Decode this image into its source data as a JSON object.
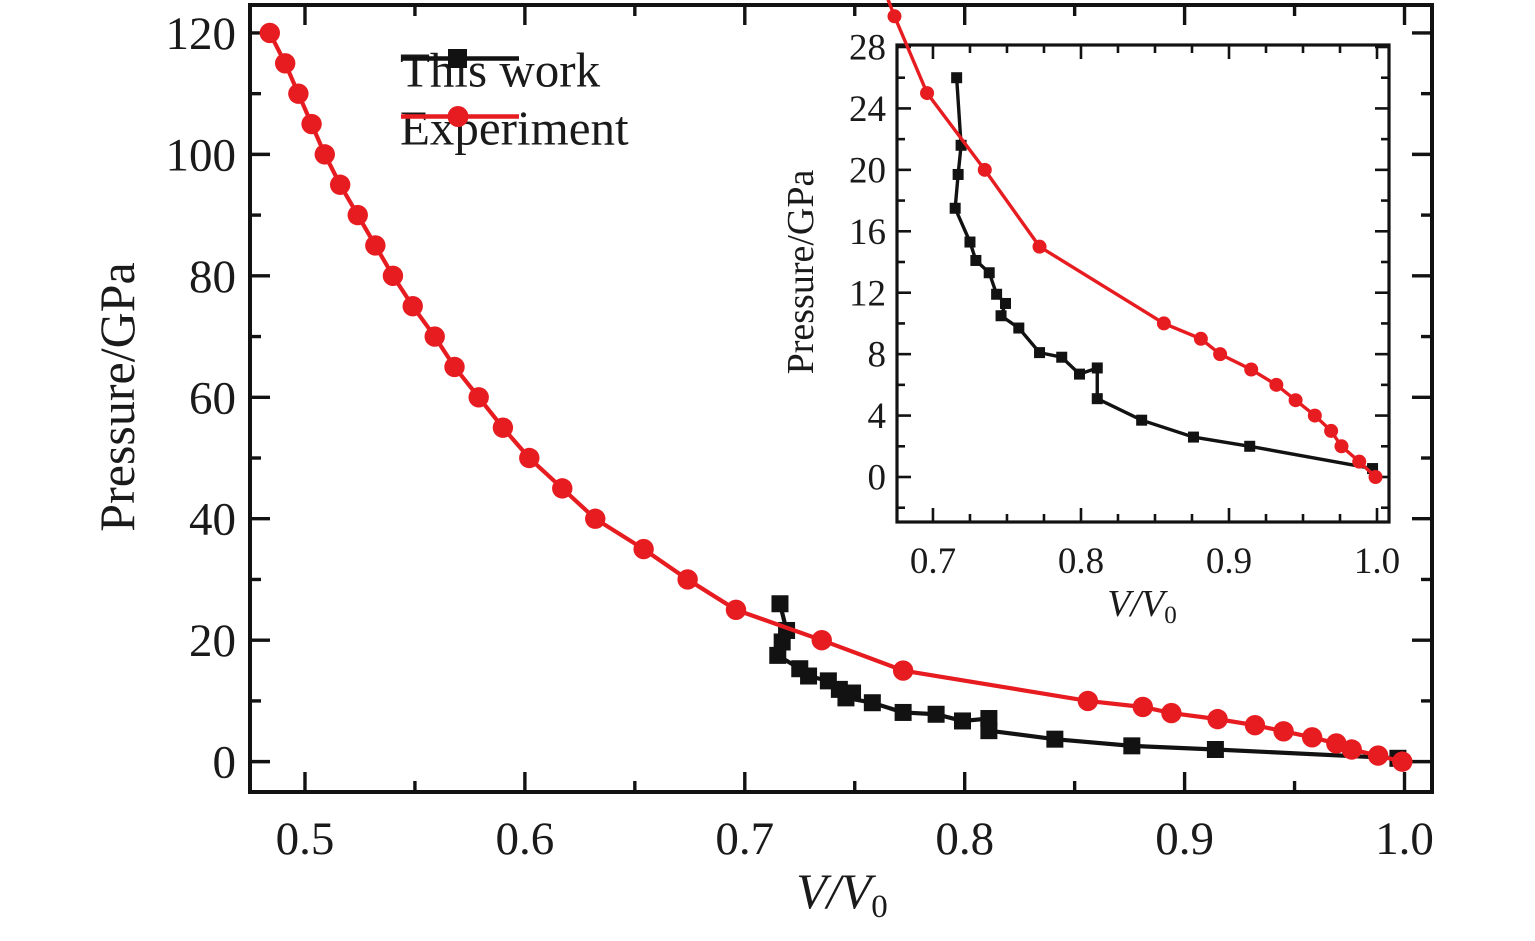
{
  "figure": {
    "background": "#ffffff",
    "text_color": "#1a1a1a"
  },
  "chart_data": {
    "type": "line",
    "title": "",
    "legend_position": "top-left-of-main-plot",
    "grid": false,
    "series": [
      {
        "name": "This work",
        "color": "#121212",
        "marker": "square",
        "points": [
          [
            0.716,
            26.0
          ],
          [
            0.719,
            21.6
          ],
          [
            0.717,
            19.7
          ],
          [
            0.715,
            17.5
          ],
          [
            0.725,
            15.3
          ],
          [
            0.729,
            14.1
          ],
          [
            0.738,
            13.3
          ],
          [
            0.743,
            11.9
          ],
          [
            0.749,
            11.3
          ],
          [
            0.746,
            10.5
          ],
          [
            0.758,
            9.7
          ],
          [
            0.772,
            8.1
          ],
          [
            0.787,
            7.8
          ],
          [
            0.799,
            6.7
          ],
          [
            0.811,
            7.1
          ],
          [
            0.811,
            5.1
          ],
          [
            0.841,
            3.7
          ],
          [
            0.876,
            2.6
          ],
          [
            0.914,
            2.0
          ],
          [
            0.997,
            0.55
          ]
        ]
      },
      {
        "name": "Experiment",
        "color": "#e71c21",
        "marker": "circle",
        "points": [
          [
            0.484,
            120
          ],
          [
            0.491,
            115
          ],
          [
            0.497,
            110
          ],
          [
            0.503,
            105
          ],
          [
            0.509,
            100
          ],
          [
            0.516,
            95
          ],
          [
            0.524,
            90
          ],
          [
            0.532,
            85
          ],
          [
            0.54,
            80
          ],
          [
            0.549,
            75
          ],
          [
            0.559,
            70
          ],
          [
            0.568,
            65
          ],
          [
            0.579,
            60
          ],
          [
            0.59,
            55
          ],
          [
            0.602,
            50
          ],
          [
            0.617,
            45
          ],
          [
            0.632,
            40
          ],
          [
            0.654,
            35
          ],
          [
            0.674,
            30
          ],
          [
            0.696,
            25
          ],
          [
            0.735,
            20
          ],
          [
            0.772,
            15
          ],
          [
            0.856,
            10
          ],
          [
            0.881,
            9
          ],
          [
            0.894,
            8
          ],
          [
            0.915,
            7
          ],
          [
            0.932,
            6
          ],
          [
            0.945,
            5
          ],
          [
            0.958,
            4
          ],
          [
            0.969,
            3
          ],
          [
            0.976,
            2
          ],
          [
            0.988,
            1
          ],
          [
            0.999,
            0
          ]
        ]
      }
    ],
    "views": {
      "main": {
        "xlabel": "V/V0",
        "xlabel_main": "V/V",
        "xlabel_sub": "0",
        "ylabel": "Pressure/GPa",
        "xlim": [
          0.475,
          1.0125
        ],
        "ylim": [
          -5,
          124.6
        ],
        "xticks": [
          0.5,
          0.6,
          0.7,
          0.8,
          0.9,
          1.0
        ],
        "xtick_labels": [
          "0.5",
          "0.6",
          "0.7",
          "0.8",
          "0.9",
          "1.0"
        ],
        "xticks_minor": [
          0.55,
          0.65,
          0.75,
          0.85,
          0.95
        ],
        "yticks": [
          0,
          20,
          40,
          60,
          80,
          100,
          120
        ],
        "ytick_labels": [
          "0",
          "20",
          "40",
          "60",
          "80",
          "100",
          "120"
        ],
        "yticks_minor": [
          10,
          30,
          50,
          70,
          90,
          110
        ]
      },
      "inset": {
        "xlabel": "V/V0",
        "xlabel_main": "V/V",
        "xlabel_sub": "0",
        "ylabel": "Pressure/GPa",
        "xlim": [
          0.6757,
          1.0081
        ],
        "ylim": [
          -2.93,
          28.13
        ],
        "xticks": [
          0.7,
          0.8,
          0.9,
          1.0
        ],
        "xtick_labels": [
          "0.7",
          "0.8",
          "0.9",
          "1.0"
        ],
        "xticks_minor": [
          0.725,
          0.75,
          0.775,
          0.825,
          0.85,
          0.875,
          0.925,
          0.95,
          0.975
        ],
        "yticks": [
          0,
          4,
          8,
          12,
          16,
          20,
          24,
          28
        ],
        "ytick_labels": [
          "0",
          "4",
          "8",
          "12",
          "16",
          "20",
          "24",
          "28"
        ],
        "yticks_minor": [
          -2,
          2,
          6,
          10,
          14,
          18,
          22,
          26
        ]
      }
    }
  }
}
